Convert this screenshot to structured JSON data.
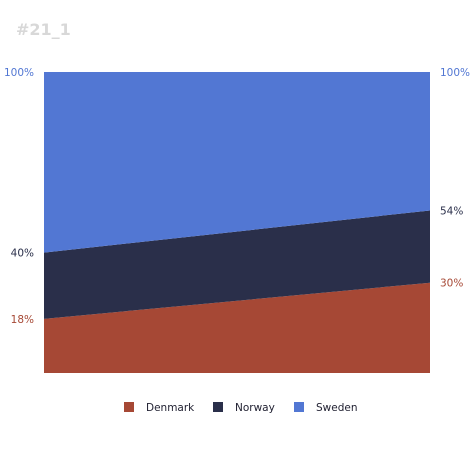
{
  "title": "#21_1",
  "colors": {
    "title": "#d8d8d8",
    "Denmark": "#a64835",
    "Norway": "#2a2f4a",
    "Sweden": "#5277d3"
  },
  "chart_data": {
    "type": "area",
    "stacked": true,
    "percent": true,
    "title": "#21_1",
    "x": [
      "start",
      "end"
    ],
    "ylim": [
      0,
      100
    ],
    "grid": false,
    "legend_position": "bottom",
    "series": [
      {
        "name": "Denmark",
        "values": [
          18,
          30
        ]
      },
      {
        "name": "Norway",
        "values": [
          22,
          24
        ]
      },
      {
        "name": "Sweden",
        "values": [
          60,
          46
        ]
      }
    ],
    "end_labels": {
      "left": [
        {
          "text": "18%",
          "cumulative": 18,
          "color": "#a64835"
        },
        {
          "text": "40%",
          "cumulative": 40,
          "color": "#2a2f4a"
        },
        {
          "text": "100%",
          "cumulative": 100,
          "color": "#5277d3"
        }
      ],
      "right": [
        {
          "text": "30%",
          "cumulative": 30,
          "color": "#a64835"
        },
        {
          "text": "54%",
          "cumulative": 54,
          "color": "#2a2f4a"
        },
        {
          "text": "100%",
          "cumulative": 100,
          "color": "#5277d3"
        }
      ]
    },
    "legend": [
      "Denmark",
      "Norway",
      "Sweden"
    ]
  }
}
